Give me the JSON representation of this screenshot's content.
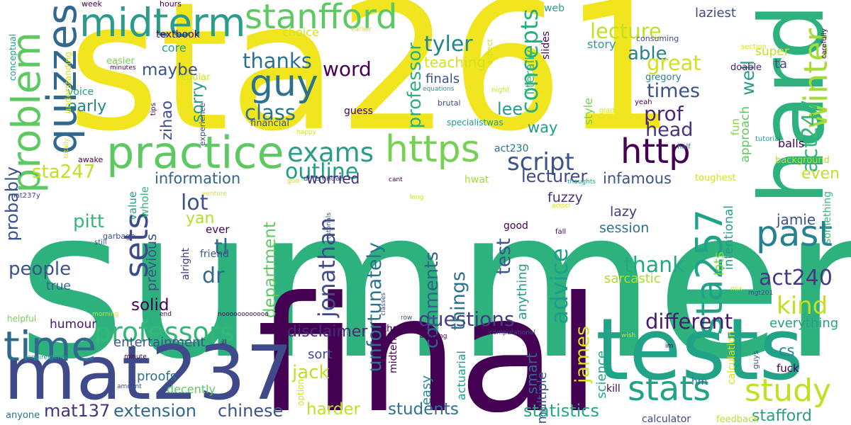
{
  "wordcloud": {
    "words": [
      {
        "text": "summer",
        "color": "#2db27d"
      },
      {
        "text": "sta261",
        "color": "#f0e51f"
      },
      {
        "text": "final",
        "color": "#440154"
      },
      {
        "text": "tests",
        "color": "#20a386"
      },
      {
        "text": "hard",
        "color": "#2db27d"
      },
      {
        "text": "mat237",
        "color": "#3e4a89"
      },
      {
        "text": "practice",
        "color": "#5ec962"
      },
      {
        "text": "https",
        "color": "#75d054"
      },
      {
        "text": "http",
        "color": "#440154"
      },
      {
        "text": "midterm",
        "color": "#2a9c89"
      },
      {
        "text": "stanfford",
        "color": "#5ec962"
      },
      {
        "text": "quizzes",
        "color": "#31688e"
      },
      {
        "text": "problem",
        "color": "#5ec962"
      },
      {
        "text": "time",
        "color": "#31688e"
      },
      {
        "text": "past",
        "color": "#26828e"
      },
      {
        "text": "guy",
        "color": "#2c728e"
      },
      {
        "text": "stats",
        "color": "#20a386"
      },
      {
        "text": "study",
        "color": "#c2df23"
      },
      {
        "text": "winter",
        "color": "#a5db36"
      },
      {
        "text": "sta257",
        "color": "#20a386"
      },
      {
        "text": "professors",
        "color": "#35b779"
      },
      {
        "text": "sets",
        "color": "#3e4a89"
      },
      {
        "text": "exams",
        "color": "#2a9c89"
      },
      {
        "text": "script",
        "color": "#3b528b"
      },
      {
        "text": "outline",
        "color": "#1f9e89"
      },
      {
        "text": "class",
        "color": "#2c728e"
      },
      {
        "text": "thanks",
        "color": "#2c728e"
      },
      {
        "text": "word",
        "color": "#440154"
      },
      {
        "text": "tyler",
        "color": "#25858e"
      },
      {
        "text": "concepts",
        "color": "#29af7f"
      },
      {
        "text": "lecture",
        "color": "#c2df23"
      },
      {
        "text": "able",
        "color": "#26828e"
      },
      {
        "text": "great",
        "color": "#d2e21b"
      },
      {
        "text": "times",
        "color": "#3b528b"
      },
      {
        "text": "prof",
        "color": "#482878"
      },
      {
        "text": "head",
        "color": "#46337e"
      },
      {
        "text": "well",
        "color": "#2a9c89"
      },
      {
        "text": "act247",
        "color": "#35b779"
      },
      {
        "text": "kind",
        "color": "#c2df23"
      },
      {
        "text": "act240",
        "color": "#443983"
      },
      {
        "text": "thank",
        "color": "#22a884"
      },
      {
        "text": "advice",
        "color": "#1f9e89"
      },
      {
        "text": "different",
        "color": "#481b6d"
      },
      {
        "text": "questions",
        "color": "#433e85"
      },
      {
        "text": "comments",
        "color": "#33638d"
      },
      {
        "text": "things",
        "color": "#2c728e"
      },
      {
        "text": "jonathan",
        "color": "#3e4a89"
      },
      {
        "text": "unfortunately",
        "color": "#2c728e"
      },
      {
        "text": "department",
        "color": "#5ec962"
      },
      {
        "text": "test",
        "color": "#39568c"
      },
      {
        "text": "lecturer",
        "color": "#3e4a89"
      },
      {
        "text": "infamous",
        "color": "#3b528b"
      },
      {
        "text": "students",
        "color": "#2c728e"
      },
      {
        "text": "statistics",
        "color": "#22a884"
      },
      {
        "text": "extension",
        "color": "#31688e"
      },
      {
        "text": "chinese",
        "color": "#3b528b"
      },
      {
        "text": "mat137",
        "color": "#46337e"
      },
      {
        "text": "harder",
        "color": "#c2df23"
      },
      {
        "text": "jack",
        "color": "#bddf26"
      },
      {
        "text": "people",
        "color": "#3b528b"
      },
      {
        "text": "probably",
        "color": "#3b528b"
      },
      {
        "text": "sta247",
        "color": "#c2df23"
      },
      {
        "text": "information",
        "color": "#33638d"
      },
      {
        "text": "lot",
        "color": "#3b528b"
      },
      {
        "text": "yan",
        "color": "#b5de2b"
      },
      {
        "text": "pitt",
        "color": "#35b779"
      },
      {
        "text": "dr",
        "color": "#31688e"
      },
      {
        "text": "tl",
        "color": "#31688e"
      },
      {
        "text": "early",
        "color": "#25858e"
      },
      {
        "text": "maybe",
        "color": "#3b528b"
      },
      {
        "text": "lee",
        "color": "#2a9c89"
      },
      {
        "text": "way",
        "color": "#1f9e89"
      },
      {
        "text": "sorry",
        "color": "#2a9c89"
      },
      {
        "text": "zihao",
        "color": "#3e4a89"
      },
      {
        "text": "professor",
        "color": "#29af7f"
      },
      {
        "text": "worried",
        "color": "#482878"
      },
      {
        "text": "solid",
        "color": "#440154"
      },
      {
        "text": "humour",
        "color": "#481b6d"
      },
      {
        "text": "entertainment",
        "color": "#3b528b"
      },
      {
        "text": "disclaimer",
        "color": "#482878"
      },
      {
        "text": "proofs",
        "color": "#2c728e"
      },
      {
        "text": "decently",
        "color": "#5ec962"
      },
      {
        "text": "everything",
        "color": "#2a9c89"
      },
      {
        "text": "cs",
        "color": "#238a8d"
      },
      {
        "text": "even",
        "color": "#c2df23"
      },
      {
        "text": "jamie",
        "color": "#3b528b"
      },
      {
        "text": "lots",
        "color": "#86d549"
      },
      {
        "text": "sarcastic",
        "color": "#addc30"
      },
      {
        "text": "session",
        "color": "#2c728e"
      },
      {
        "text": "lazy",
        "color": "#443983"
      },
      {
        "text": "fuzzy",
        "color": "#46337e"
      },
      {
        "text": "good",
        "color": "#440154"
      },
      {
        "text": "easy",
        "color": "#238a8d"
      },
      {
        "text": "sort",
        "color": "#3e4a89"
      },
      {
        "text": "smart",
        "color": "#31688e"
      },
      {
        "text": "multiple",
        "color": "#3b528b"
      },
      {
        "text": "james",
        "color": "#d2e21b"
      },
      {
        "text": "science",
        "color": "#20a386"
      },
      {
        "text": "kill",
        "color": "#440154"
      },
      {
        "text": "stafford",
        "color": "#2a9c89"
      },
      {
        "text": "calculator",
        "color": "#3e4a89"
      },
      {
        "text": "feedback",
        "color": "#bddf26"
      },
      {
        "text": "anyone",
        "color": "#2c728e"
      },
      {
        "text": "fuck",
        "color": "#440154"
      },
      {
        "text": "hm",
        "color": "#2c728e"
      },
      {
        "text": "true",
        "color": "#33638d"
      },
      {
        "text": "value",
        "color": "#2a9c89"
      },
      {
        "text": "whole",
        "color": "#35b779"
      },
      {
        "text": "previous",
        "color": "#3b528b"
      },
      {
        "text": "ever",
        "color": "#440154"
      },
      {
        "text": "friend",
        "color": "#39568c"
      },
      {
        "text": "alright",
        "color": "#46337e"
      },
      {
        "text": "textbook",
        "color": "#440154"
      },
      {
        "text": "choice",
        "color": "#d2e21b"
      },
      {
        "text": "core",
        "color": "#2a9c89"
      },
      {
        "text": "laziest",
        "color": "#3e4a89"
      },
      {
        "text": "story",
        "color": "#2a9c89"
      },
      {
        "text": "gregory",
        "color": "#26828e"
      },
      {
        "text": "super",
        "color": "#c2df23"
      },
      {
        "text": "ta",
        "color": "#3e4a89"
      },
      {
        "text": "doable",
        "color": "#481b6d"
      },
      {
        "text": "teaching",
        "color": "#d2e21b"
      },
      {
        "text": "finals",
        "color": "#3b528b"
      },
      {
        "text": "literally",
        "color": "#35b779"
      },
      {
        "text": "slides",
        "color": "#440154"
      },
      {
        "text": "web",
        "color": "#2a9c89"
      },
      {
        "text": "style",
        "color": "#75d054"
      },
      {
        "text": "approach",
        "color": "#5ec962"
      },
      {
        "text": "fun",
        "color": "#86d549"
      },
      {
        "text": "toughest",
        "color": "#d2e21b"
      },
      {
        "text": "background",
        "color": "#b5de2b"
      },
      {
        "text": "balls",
        "color": "#440154"
      },
      {
        "text": "something",
        "color": "#35b779"
      },
      {
        "text": "intentional",
        "color": "#2a9c89"
      },
      {
        "text": "anything",
        "color": "#2a9c89"
      },
      {
        "text": "actuarial",
        "color": "#1f9e89"
      },
      {
        "text": "midterms",
        "color": "#440154"
      },
      {
        "text": "option",
        "color": "#d2e21b"
      },
      {
        "text": "theres",
        "color": "#440154"
      },
      {
        "text": "calculation",
        "color": "#d2e21b"
      },
      {
        "text": "guys",
        "color": "#3b528b"
      },
      {
        "text": "act230",
        "color": "#2c728e"
      },
      {
        "text": "hwat",
        "color": "#a5db36"
      },
      {
        "text": "differential",
        "color": "#3b528b"
      },
      {
        "text": "guess",
        "color": "#440154"
      },
      {
        "text": "financial",
        "color": "#3e4a89"
      },
      {
        "text": "voice",
        "color": "#1f9e89"
      },
      {
        "text": "easier",
        "color": "#75d054"
      },
      {
        "text": "regular",
        "color": "#d2e21b"
      },
      {
        "text": "minutes",
        "color": "#440154"
      },
      {
        "text": "understanding",
        "color": "#d2e21b"
      },
      {
        "text": "conceptual",
        "color": "#1f9e89"
      },
      {
        "text": "week",
        "color": "#440154"
      },
      {
        "text": "hours",
        "color": "#440154"
      },
      {
        "text": "earlier",
        "color": "#d2e21b"
      },
      {
        "text": "aspect",
        "color": "#d2e21b"
      },
      {
        "text": "consuming",
        "color": "#3e4a89"
      },
      {
        "text": "carefully",
        "color": "#440154"
      },
      {
        "text": "section",
        "color": "#d2e21b"
      },
      {
        "text": "night",
        "color": "#d2e21b"
      },
      {
        "text": "equations",
        "color": "#1f9e89"
      },
      {
        "text": "brutal",
        "color": "#3e4a89"
      },
      {
        "text": "yeah",
        "color": "#440154"
      },
      {
        "text": "glad",
        "color": "#d2e21b"
      },
      {
        "text": "specialistwas",
        "color": "#1f9e89"
      },
      {
        "text": "tutorial",
        "color": "#1f9e89"
      },
      {
        "text": "half",
        "color": "#2c728e"
      },
      {
        "text": "happy",
        "color": "#d2e21b"
      },
      {
        "text": "experience",
        "color": "#3e4a89"
      },
      {
        "text": "tips",
        "color": "#440154"
      },
      {
        "text": "totally",
        "color": "#d2e21b"
      },
      {
        "text": "awake",
        "color": "#440154"
      },
      {
        "text": "mat237y",
        "color": "#3e4a89"
      },
      {
        "text": "venture",
        "color": "#d2e21b"
      },
      {
        "text": "god",
        "color": "#d2e21b"
      },
      {
        "text": "cant",
        "color": "#440154"
      },
      {
        "text": "thoughts",
        "color": "#1f9e89"
      },
      {
        "text": "long",
        "color": "#d2e21b"
      },
      {
        "text": "actsci",
        "color": "#d2e21b"
      },
      {
        "text": "tutorials",
        "color": "#3e4a89"
      },
      {
        "text": "garbage",
        "color": "#3e4a89"
      },
      {
        "text": "still",
        "color": "#3e4a89"
      },
      {
        "text": "fall",
        "color": "#440154"
      },
      {
        "text": "mix",
        "color": "#d2e21b"
      },
      {
        "text": "mgt201",
        "color": "#3e4a89"
      },
      {
        "text": "helpful",
        "color": "#75d054"
      },
      {
        "text": "morning",
        "color": "#d2e21b"
      },
      {
        "text": "end",
        "color": "#440154"
      },
      {
        "text": "noooooooooooo",
        "color": "#440154"
      },
      {
        "text": "classes",
        "color": "#3e4a89"
      },
      {
        "text": "row",
        "color": "#3e4a89"
      },
      {
        "text": "computational",
        "color": "#3e4a89"
      },
      {
        "text": "wish",
        "color": "#d2e21b"
      },
      {
        "text": "im",
        "color": "#440154"
      },
      {
        "text": "requirements",
        "color": "#1f9e89"
      },
      {
        "text": "minute",
        "color": "#440154"
      },
      {
        "text": "amount",
        "color": "#3e4a89"
      },
      {
        "text": "ill",
        "color": "#440154"
      },
      {
        "text": "amazing",
        "color": "#440154"
      }
    ]
  }
}
